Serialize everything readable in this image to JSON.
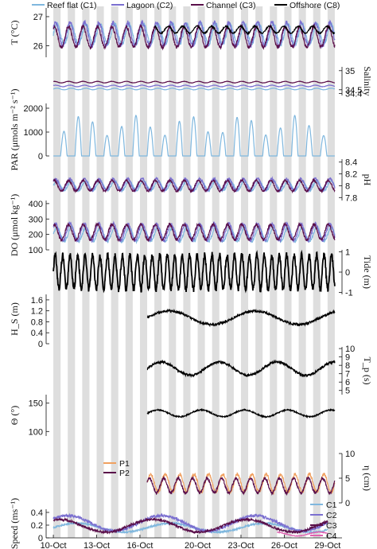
{
  "chart_data": {
    "type": "line",
    "x_axis": {
      "label": "",
      "ticks": [
        "10-Oct",
        "13-Oct",
        "16-Oct",
        "20-Oct",
        "23-Oct",
        "26-Oct",
        "29-Oct"
      ],
      "tick_days": [
        10,
        13,
        16,
        20,
        23,
        26,
        29
      ],
      "range_days": [
        9.5,
        30.0
      ],
      "night_shading": true
    },
    "legend_top": [
      {
        "name": "Reef flat (C1)",
        "color": "#7fb7de"
      },
      {
        "name": "Lagoon (C2)",
        "color": "#7b6fd0"
      },
      {
        "name": "Channel (C3)",
        "color": "#5a0f4a"
      },
      {
        "name": "Offshore (C8)",
        "color": "#000000"
      }
    ],
    "panels": [
      {
        "id": "T",
        "ylabel": "T (°C)",
        "side": "left",
        "yticks": [
          "26",
          "27"
        ],
        "ylim": [
          25.6,
          27.3
        ],
        "series": [
          {
            "name": "Reef flat (C1)",
            "mean": 26.4,
            "amp": 0.35,
            "period": 1.0,
            "start": 10.0,
            "end": 29.5
          },
          {
            "name": "Lagoon (C2)",
            "mean": 26.4,
            "amp": 0.4,
            "period": 1.0,
            "start": 10.0,
            "end": 29.5
          },
          {
            "name": "Channel (C3)",
            "mean": 26.3,
            "amp": 0.35,
            "period": 1.0,
            "start": 10.0,
            "end": 29.5
          },
          {
            "name": "Offshore (C8)",
            "mean": 26.55,
            "amp": 0.12,
            "period": 1.0,
            "start": 17.0,
            "end": 29.5
          }
        ]
      },
      {
        "id": "Salinity",
        "ylabel": "Salinity",
        "side": "right",
        "yticks": [
          "34.4",
          "34.5",
          "35"
        ],
        "ylim": [
          34.35,
          35.1
        ],
        "series": [
          {
            "name": "Reef flat (C1)",
            "mean": 34.52,
            "amp": 0.02,
            "period": 1.0,
            "start": 10.0,
            "end": 29.5
          },
          {
            "name": "Lagoon (C2)",
            "mean": 34.6,
            "amp": 0.02,
            "period": 1.0,
            "start": 10.0,
            "end": 29.5
          },
          {
            "name": "Channel (C3)",
            "mean": 34.7,
            "amp": 0.02,
            "period": 1.0,
            "start": 10.0,
            "end": 29.5
          }
        ]
      },
      {
        "id": "PAR",
        "ylabel": "PAR (μmols m⁻² s⁻¹)",
        "side": "left",
        "yticks": [
          "0",
          "1000",
          "2000"
        ],
        "ylim": [
          0,
          2200
        ],
        "series": [
          {
            "name": "Reef flat (C1)",
            "mean": 0,
            "amp": 1700,
            "period": 1.0,
            "start": 10.0,
            "end": 29.5,
            "kind": "daylight"
          }
        ]
      },
      {
        "id": "pH",
        "ylabel": "pH",
        "side": "right",
        "yticks": [
          "7.8",
          "8",
          "8.2",
          "8.4"
        ],
        "ylim": [
          7.75,
          8.45
        ],
        "series": [
          {
            "name": "Reef flat (C1)",
            "mean": 8.0,
            "amp": 0.08,
            "period": 1.0,
            "start": 10.0,
            "end": 29.5
          },
          {
            "name": "Lagoon (C2)",
            "mean": 8.02,
            "amp": 0.1,
            "period": 1.0,
            "start": 10.0,
            "end": 29.5
          },
          {
            "name": "Channel (C3)",
            "mean": 8.0,
            "amp": 0.09,
            "period": 1.0,
            "start": 10.0,
            "end": 29.5
          }
        ]
      },
      {
        "id": "DO",
        "ylabel": "DO (μmol kg⁻¹)",
        "side": "left",
        "yticks": [
          "100",
          "200",
          "300",
          "400"
        ],
        "ylim": [
          100,
          420
        ],
        "series": [
          {
            "name": "Reef flat (C1)",
            "mean": 200,
            "amp": 45,
            "period": 1.0,
            "start": 10.0,
            "end": 29.5
          },
          {
            "name": "Lagoon (C2)",
            "mean": 215,
            "amp": 55,
            "period": 1.0,
            "start": 10.0,
            "end": 29.5
          },
          {
            "name": "Channel (C3)",
            "mean": 215,
            "amp": 50,
            "period": 1.0,
            "start": 10.0,
            "end": 29.5
          }
        ]
      },
      {
        "id": "Tide",
        "ylabel": "Tide (m)",
        "side": "right",
        "yticks": [
          "-1",
          "0",
          "1"
        ],
        "ylim": [
          -1.1,
          1.1
        ],
        "series": [
          {
            "name": "Tide",
            "mean": 0,
            "amp": 0.85,
            "period": 0.5175,
            "start": 10.0,
            "end": 29.5,
            "color": "#000000"
          }
        ]
      },
      {
        "id": "Hs",
        "ylabel": "H_S (m)",
        "side": "left",
        "yticks": [
          "0",
          "0.4",
          "0.8",
          "1.2",
          "1.6"
        ],
        "ylim": [
          0,
          1.8
        ],
        "series": [
          {
            "name": "Hs",
            "mean": 0.95,
            "amp": 0.25,
            "period": 6.0,
            "start": 16.5,
            "end": 29.5,
            "color": "#000000"
          }
        ]
      },
      {
        "id": "Tp",
        "ylabel": "T_p (s)",
        "side": "right",
        "yticks": [
          "5",
          "6",
          "7",
          "8",
          "9",
          "10"
        ],
        "ylim": [
          4.5,
          10.2
        ],
        "series": [
          {
            "name": "Tp",
            "mean": 7.6,
            "amp": 0.8,
            "period": 4.0,
            "start": 16.5,
            "end": 29.5,
            "color": "#000000"
          }
        ]
      },
      {
        "id": "Theta",
        "ylabel": "Θ (°)",
        "side": "left",
        "yticks": [
          "100",
          "150"
        ],
        "ylim": [
          92,
          165
        ],
        "series": [
          {
            "name": "Theta",
            "mean": 132,
            "amp": 6,
            "period": 3.0,
            "start": 16.5,
            "end": 29.5,
            "color": "#000000"
          }
        ]
      },
      {
        "id": "eta",
        "ylabel": "η (cm)",
        "side": "right",
        "yticks": [
          "0",
          "5",
          "10"
        ],
        "ylim": [
          0,
          10
        ],
        "legend": [
          {
            "name": "P1",
            "color": "#f0a060"
          },
          {
            "name": "P2",
            "color": "#5a0f4a"
          }
        ],
        "series": [
          {
            "name": "P1",
            "mean": 4.0,
            "amp": 1.8,
            "period": 1.0,
            "start": 16.5,
            "end": 29.5,
            "color": "#f0a060"
          },
          {
            "name": "P2",
            "mean": 3.5,
            "amp": 1.5,
            "period": 1.0,
            "start": 16.5,
            "end": 29.5,
            "color": "#5a0f4a"
          }
        ]
      },
      {
        "id": "Speed",
        "ylabel": "Speed (ms⁻¹)",
        "side": "left",
        "yticks": [
          "0",
          "0.2",
          "0.4"
        ],
        "ylim": [
          0,
          0.45
        ],
        "legend": [
          {
            "name": "C1",
            "color": "#7fb7de"
          },
          {
            "name": "C2",
            "color": "#7b6fd0"
          },
          {
            "name": "C3",
            "color": "#5a0f4a"
          },
          {
            "name": "C4",
            "color": "#e060b0"
          }
        ],
        "series": [
          {
            "name": "C1",
            "mean": 0.16,
            "amp": 0.07,
            "period": 6.5,
            "start": 10.0,
            "end": 29.0,
            "color": "#7fb7de"
          },
          {
            "name": "C2",
            "mean": 0.23,
            "amp": 0.12,
            "period": 6.5,
            "start": 10.0,
            "end": 29.0,
            "color": "#7b6fd0"
          },
          {
            "name": "C3",
            "mean": 0.19,
            "amp": 0.1,
            "period": 6.5,
            "start": 10.0,
            "end": 29.0,
            "color": "#5a0f4a"
          },
          {
            "name": "C4",
            "mean": 0.06,
            "amp": 0.03,
            "period": 3.0,
            "start": 25.5,
            "end": 29.0,
            "color": "#e060b0"
          }
        ]
      }
    ]
  }
}
